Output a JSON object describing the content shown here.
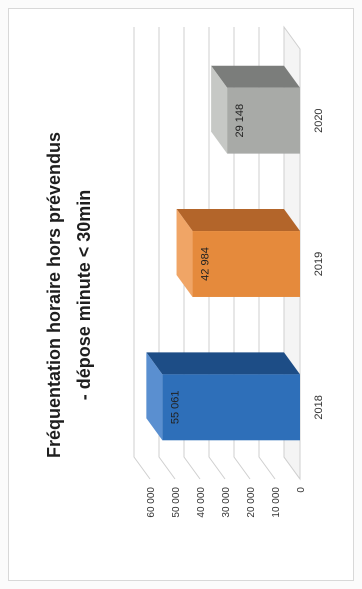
{
  "chart_data": {
    "type": "bar",
    "title_lines": [
      "Fréquentation horaire hors prévendus",
      "- dépose minute < 30min"
    ],
    "categories": [
      "2018",
      "2019",
      "2020"
    ],
    "values": [
      55061,
      42984,
      29148
    ],
    "value_labels": [
      "55 061",
      "42 984",
      "29 148"
    ],
    "y_ticks": [
      "0",
      "10 000",
      "20 000",
      "30 000",
      "40 000",
      "50 000",
      "60 000"
    ],
    "ylim": [
      0,
      60000
    ],
    "grid": true,
    "style": "3d-columns",
    "orientation": "rotated-90-counterclockwise"
  },
  "colors": {
    "bars": [
      "#2e6fb9",
      "#e58a3c",
      "#a8aaa7"
    ],
    "bars_side": [
      "#1d4d86",
      "#b3652a",
      "#7b7d7b"
    ],
    "bars_top": [
      "#5a8fd0",
      "#f0a566",
      "#c6c8c5"
    ],
    "grid": "#cfcfcf"
  }
}
